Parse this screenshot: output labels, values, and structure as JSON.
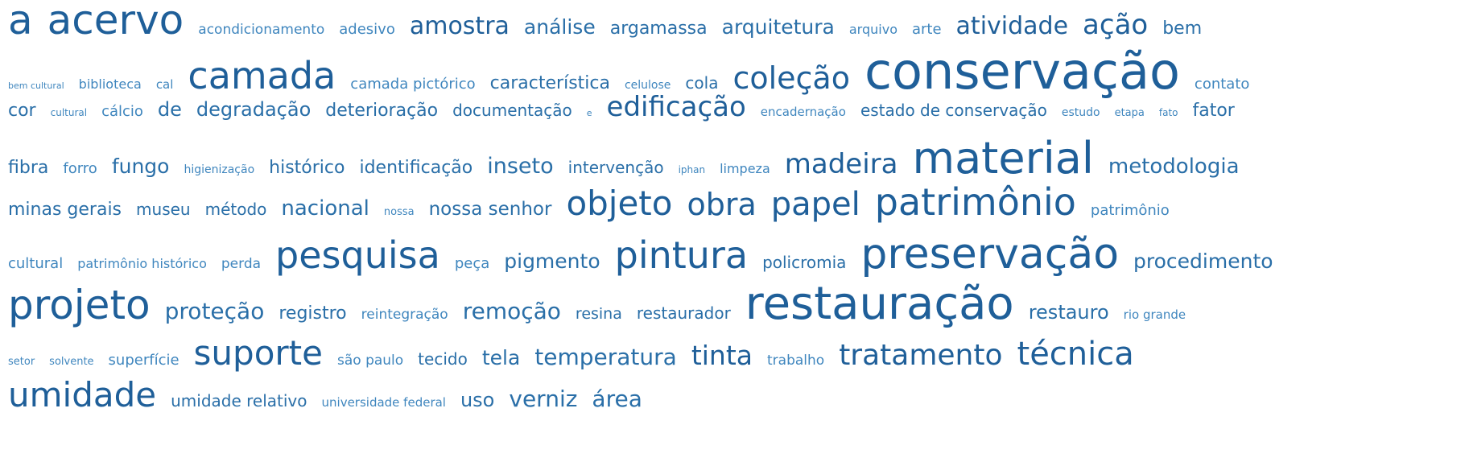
{
  "colors": {
    "tag_dark": "#1f5f99",
    "tag_mid": "#2a6fa8",
    "tag_light": "#3f86be"
  },
  "lines": [
    [
      "a",
      "acervo",
      "acondicionamento",
      "adesivo",
      "amostra",
      "análise",
      "argamassa",
      "arquitetura",
      "arquivo",
      "arte",
      "atividade",
      "ação",
      "bem"
    ],
    [
      "bem cultural",
      "biblioteca",
      "cal",
      "camada",
      "camada pictórico",
      "característica",
      "celulose",
      "cola",
      "coleção",
      "conservação",
      "contato"
    ],
    [
      "cor",
      "cultural",
      "cálcio",
      "de",
      "degradação",
      "deterioração",
      "documentação",
      "e",
      "edificação",
      "encadernação",
      "estado de conservação",
      "estudo",
      "etapa",
      "fato",
      "fator"
    ],
    [
      "fibra",
      "forro",
      "fungo",
      "higienização",
      "histórico",
      "identificação",
      "inseto",
      "intervenção",
      "iphan",
      "limpeza",
      "madeira",
      "material",
      "metodologia"
    ],
    [
      "minas gerais",
      "museu",
      "método",
      "nacional",
      "nossa",
      "nossa senhor",
      "objeto",
      "obra",
      "papel",
      "patrimônio",
      "patrimônio"
    ],
    [
      "cultural",
      "patrimônio histórico",
      "perda",
      "pesquisa",
      "peça",
      "pigmento",
      "pintura",
      "policromia",
      "preservação",
      "procedimento"
    ],
    [
      "projeto",
      "proteção",
      "registro",
      "reintegração",
      "remoção",
      "resina",
      "restaurador",
      "restauração",
      "restauro",
      "rio grande"
    ],
    [
      "setor",
      "solvente",
      "superfície",
      "suporte",
      "são paulo",
      "tecido",
      "tela",
      "temperatura",
      "tinta",
      "trabalho",
      "tratamento",
      "técnica"
    ],
    [
      "umidade",
      "umidade relativo",
      "universidade federal",
      "uso",
      "verniz",
      "área"
    ]
  ]
}
